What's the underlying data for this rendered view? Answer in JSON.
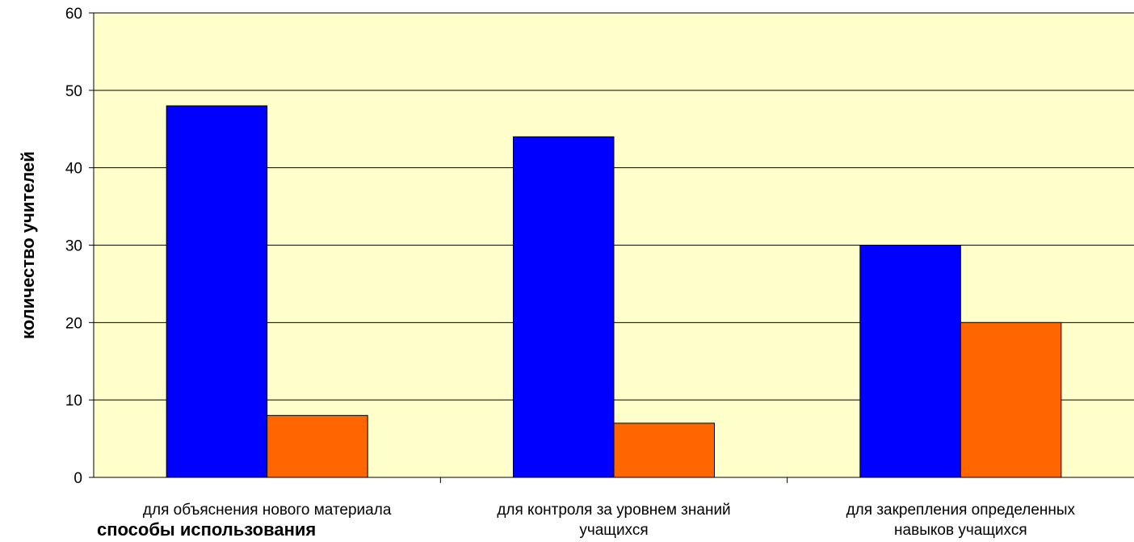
{
  "chart_data": {
    "type": "bar",
    "title": "",
    "xlabel": "способы использования",
    "ylabel": "количество учителей",
    "ylim": [
      0,
      60
    ],
    "yticks": [
      0,
      10,
      20,
      30,
      40,
      50,
      60
    ],
    "grid": true,
    "legend": "none",
    "categories": [
      [
        "для объяснения нового материала"
      ],
      [
        "для контроля за уровнем знаний",
        "учащихся"
      ],
      [
        "для закрепления определенных",
        "навыков учащихся"
      ]
    ],
    "series": [
      {
        "values": [
          48,
          44,
          30
        ],
        "color": "#0000ff"
      },
      {
        "values": [
          8,
          7,
          20
        ],
        "color": "#ff6600"
      }
    ],
    "plot_background": "#ffffcc"
  }
}
